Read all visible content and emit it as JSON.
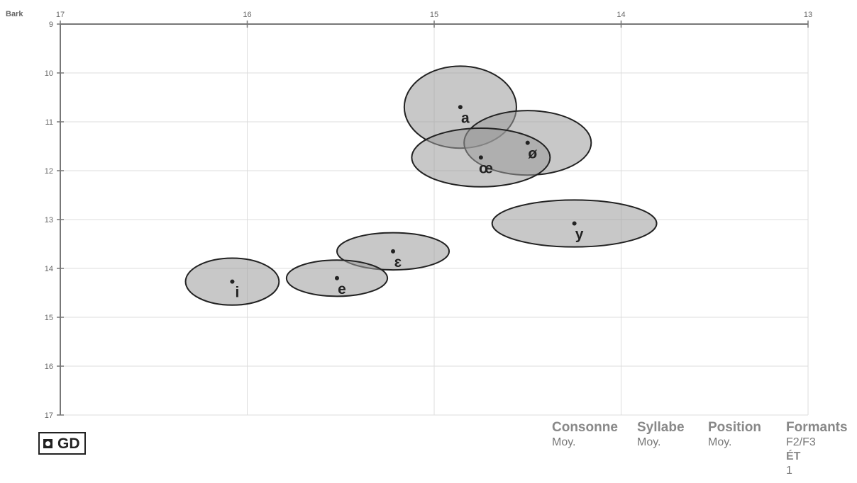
{
  "chart_data": {
    "type": "scatter",
    "title": "",
    "unit_label": "Bark",
    "x_axis": {
      "position": "top",
      "reversed": true,
      "range": [
        17,
        13
      ],
      "ticks": [
        17,
        16,
        15,
        14,
        13
      ]
    },
    "y_axis": {
      "reversed": true,
      "range": [
        9,
        17
      ],
      "ticks": [
        9,
        10,
        11,
        12,
        13,
        14,
        15,
        16,
        17
      ]
    },
    "grid": true,
    "points": [
      {
        "label": "a",
        "x": 14.86,
        "y": 10.7,
        "sd_x": 0.3,
        "sd_y": 0.84
      },
      {
        "label": "ø",
        "x": 14.5,
        "y": 11.43,
        "sd_x": 0.34,
        "sd_y": 0.66
      },
      {
        "label": "œ",
        "x": 14.75,
        "y": 11.73,
        "sd_x": 0.37,
        "sd_y": 0.6
      },
      {
        "label": "y",
        "x": 14.25,
        "y": 13.08,
        "sd_x": 0.44,
        "sd_y": 0.48
      },
      {
        "label": "ɛ",
        "x": 15.22,
        "y": 13.65,
        "sd_x": 0.3,
        "sd_y": 0.38
      },
      {
        "label": "e",
        "x": 15.52,
        "y": 14.2,
        "sd_x": 0.27,
        "sd_y": 0.37
      },
      {
        "label": "i",
        "x": 16.08,
        "y": 14.27,
        "sd_x": 0.25,
        "sd_y": 0.48
      }
    ]
  },
  "legend": {
    "label": "GD"
  },
  "info_columns": [
    {
      "head": "Consonne",
      "value": "Moy."
    },
    {
      "head": "Syllabe",
      "value": "Moy."
    },
    {
      "head": "Position",
      "value": "Moy."
    },
    {
      "head": "Formants",
      "value": "F2/F3",
      "sub_head": "ÉT",
      "sub_value": "1"
    }
  ],
  "colors": {
    "ellipse_fill": "#9a9a9a",
    "ellipse_stroke": "#222222",
    "axis": "#777777",
    "grid": "#dddddd",
    "text": "#222222"
  }
}
